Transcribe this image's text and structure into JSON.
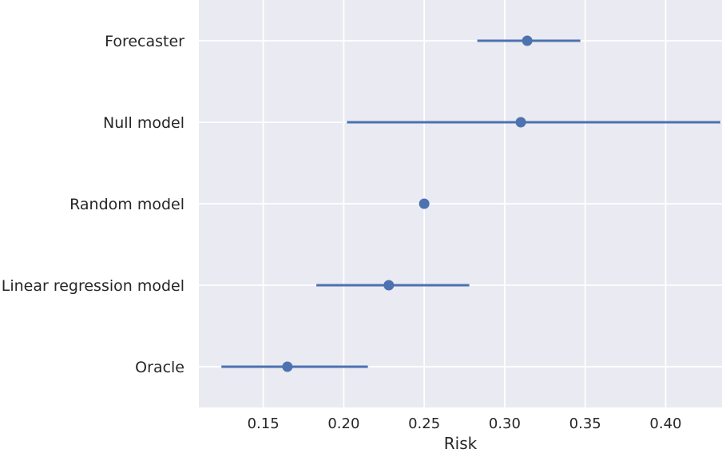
{
  "chart_data": {
    "type": "scatter",
    "orientation": "horizontal",
    "xlabel": "Risk",
    "ylabel": "",
    "xlim": [
      0.11,
      0.435
    ],
    "xticks": [
      0.15,
      0.2,
      0.25,
      0.3,
      0.35,
      0.4
    ],
    "xtick_labels": [
      "0.15",
      "0.20",
      "0.25",
      "0.30",
      "0.35",
      "0.40"
    ],
    "grid": true,
    "background": "#eaeaf2",
    "grid_color": "#ffffff",
    "marker_color": "#4c72b0",
    "categories": [
      "Forecaster",
      "Null model",
      "Random model",
      "Linear regression model",
      "Oracle"
    ],
    "points": [
      {
        "label": "Forecaster",
        "value": 0.314,
        "low": 0.283,
        "high": 0.347
      },
      {
        "label": "Null model",
        "value": 0.31,
        "low": 0.202,
        "high": 0.434
      },
      {
        "label": "Random model",
        "value": 0.25,
        "low": 0.25,
        "high": 0.25
      },
      {
        "label": "Linear regression model",
        "value": 0.228,
        "low": 0.183,
        "high": 0.278
      },
      {
        "label": "Oracle",
        "value": 0.165,
        "low": 0.124,
        "high": 0.215
      }
    ]
  }
}
